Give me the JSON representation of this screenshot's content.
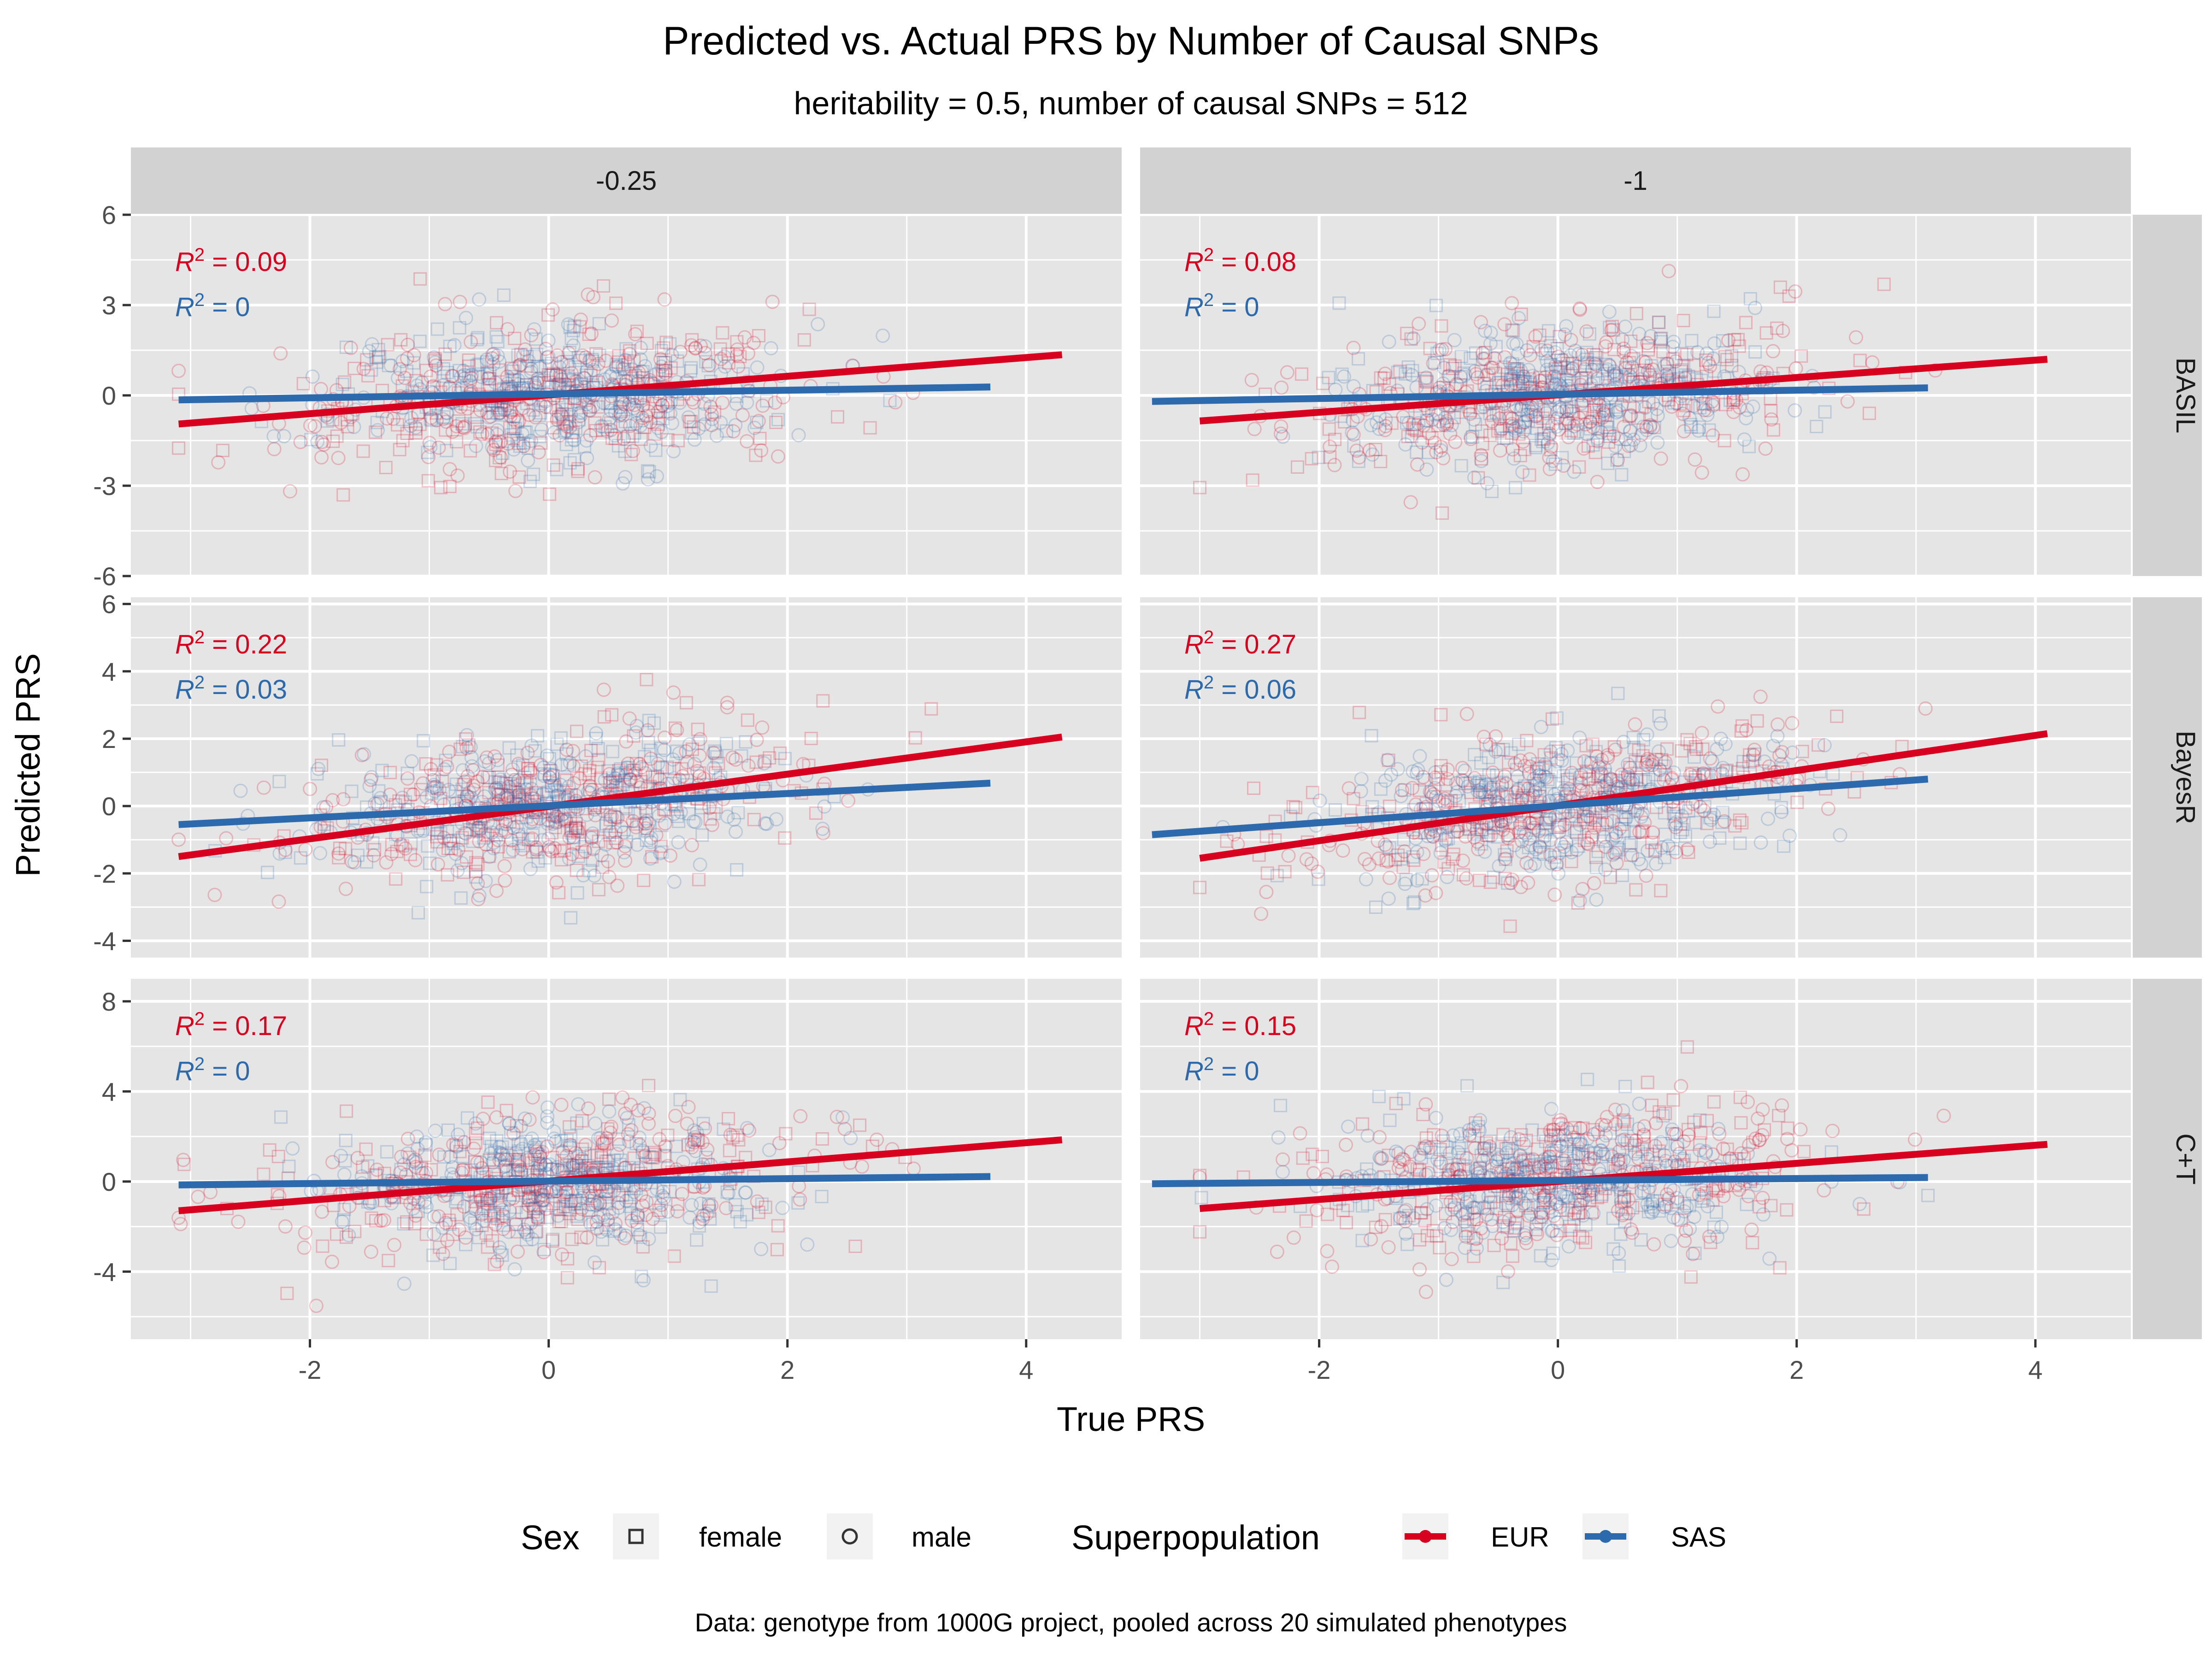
{
  "title": "Predicted vs. Actual PRS by Number of Causal SNPs",
  "subtitle": "heritability = 0.5, number of causal SNPs = 512",
  "xlabel": "True PRS",
  "ylabel": "Predicted PRS",
  "caption": "Data: genotype from 1000G project, pooled across 20 simulated phenotypes",
  "legend": {
    "sex_title": "Sex",
    "sex_items": [
      "female",
      "male"
    ],
    "pop_title": "Superpopulation",
    "pop_items": [
      "EUR",
      "SAS"
    ]
  },
  "colors": {
    "EUR": "#d7001f",
    "SAS": "#2c69ad",
    "panel_bg": "#e5e5e5",
    "strip_bg": "#d2d2d2",
    "grid": "#ffffff"
  },
  "chart_data": {
    "type": "scatter",
    "facet_columns": [
      "-0.25",
      "-1"
    ],
    "facet_rows": [
      "BASIL",
      "BayesR",
      "C+T"
    ],
    "x_range": [
      -3.5,
      4.8
    ],
    "x_ticks": [
      -2,
      0,
      2,
      4
    ],
    "x_tick_labels": [
      "-2",
      "0",
      "2",
      "4"
    ],
    "rows": [
      {
        "name": "BASIL",
        "y_range": [
          -6,
          6
        ],
        "y_ticks": [
          -6,
          -3,
          0,
          3,
          6
        ],
        "y_tick_labels": [
          "-6",
          "-3",
          "0",
          "3",
          "6"
        ]
      },
      {
        "name": "BayesR",
        "y_range": [
          -4.5,
          6.2
        ],
        "y_ticks": [
          -4,
          -2,
          0,
          2,
          4,
          6
        ],
        "y_tick_labels": [
          "-4",
          "-2",
          "0",
          "2",
          "4",
          "6"
        ]
      },
      {
        "name": "C+T",
        "y_range": [
          -7,
          9
        ],
        "y_ticks": [
          -4,
          0,
          4,
          8
        ],
        "y_tick_labels": [
          "-4",
          "0",
          "4",
          "8"
        ]
      }
    ],
    "panels": [
      {
        "row": "BASIL",
        "col": "-0.25",
        "r2_EUR": "= 0.09",
        "r2_SAS": "= 0",
        "fit_EUR": [
          [
            -3.1,
            -0.95
          ],
          [
            4.3,
            1.35
          ]
        ],
        "fit_SAS": [
          [
            -3.1,
            -0.15
          ],
          [
            3.7,
            0.28
          ]
        ]
      },
      {
        "row": "BASIL",
        "col": "-1",
        "r2_EUR": "= 0.08",
        "r2_SAS": "= 0",
        "fit_EUR": [
          [
            -3.0,
            -0.85
          ],
          [
            4.1,
            1.2
          ]
        ],
        "fit_SAS": [
          [
            -3.4,
            -0.2
          ],
          [
            3.1,
            0.25
          ]
        ]
      },
      {
        "row": "BayesR",
        "col": "-0.25",
        "r2_EUR": "= 0.22",
        "r2_SAS": "= 0.03",
        "fit_EUR": [
          [
            -3.1,
            -1.5
          ],
          [
            4.3,
            2.05
          ]
        ],
        "fit_SAS": [
          [
            -3.1,
            -0.55
          ],
          [
            3.7,
            0.68
          ]
        ]
      },
      {
        "row": "BayesR",
        "col": "-1",
        "r2_EUR": "= 0.27",
        "r2_SAS": "= 0.06",
        "fit_EUR": [
          [
            -3.0,
            -1.55
          ],
          [
            4.1,
            2.15
          ]
        ],
        "fit_SAS": [
          [
            -3.4,
            -0.85
          ],
          [
            3.1,
            0.8
          ]
        ]
      },
      {
        "row": "C+T",
        "col": "-0.25",
        "r2_EUR": "= 0.17",
        "r2_SAS": "= 0",
        "fit_EUR": [
          [
            -3.1,
            -1.3
          ],
          [
            4.3,
            1.85
          ]
        ],
        "fit_SAS": [
          [
            -3.1,
            -0.15
          ],
          [
            3.7,
            0.22
          ]
        ]
      },
      {
        "row": "C+T",
        "col": "-1",
        "r2_EUR": "= 0.15",
        "r2_SAS": "= 0",
        "fit_EUR": [
          [
            -3.0,
            -1.2
          ],
          [
            4.1,
            1.65
          ]
        ],
        "fit_SAS": [
          [
            -3.4,
            -0.1
          ],
          [
            3.1,
            0.18
          ]
        ]
      }
    ],
    "series": [
      {
        "name": "EUR",
        "spread_x_sd": 1.1,
        "noise_sd": 1.2
      },
      {
        "name": "SAS",
        "spread_x_sd": 0.9,
        "noise_sd": 1.1
      }
    ],
    "grid": true,
    "legend_position": "bottom"
  }
}
